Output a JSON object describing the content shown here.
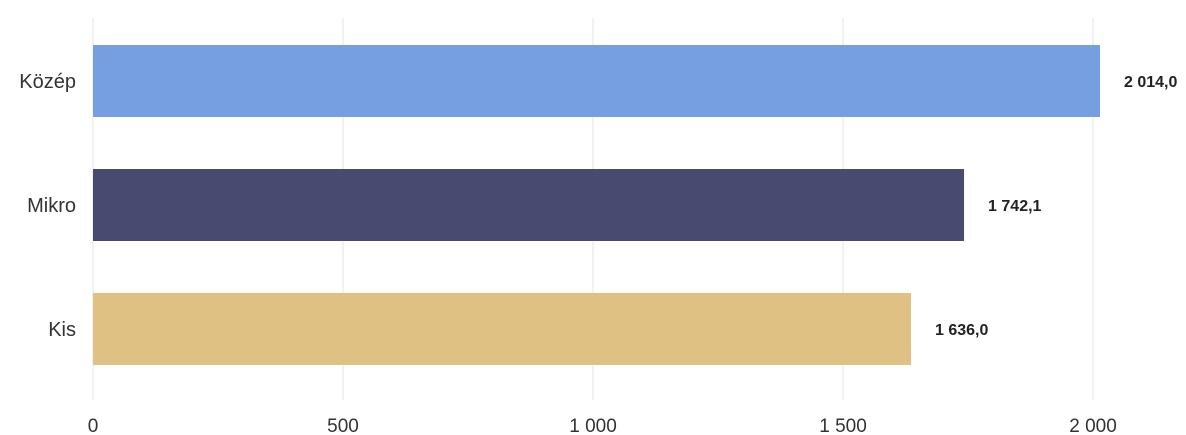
{
  "chart_data": {
    "type": "bar",
    "orientation": "horizontal",
    "title": "",
    "xlabel": "",
    "ylabel": "",
    "categories": [
      "Közép",
      "Mikro",
      "Kis"
    ],
    "values": [
      2014.0,
      1742.1,
      1636.0
    ],
    "data_labels": [
      "2 014,0",
      "1 742,1",
      "1 636,0"
    ],
    "colors": [
      "#769fe1",
      "#484b6f",
      "#dfc283"
    ],
    "xlim": [
      0,
      2000
    ],
    "xticks": [
      0,
      500,
      1000,
      1500,
      2000
    ],
    "xtick_labels": [
      "0",
      "500",
      "1 000",
      "1 500",
      "2 000"
    ],
    "grid": true,
    "legend": "none"
  }
}
